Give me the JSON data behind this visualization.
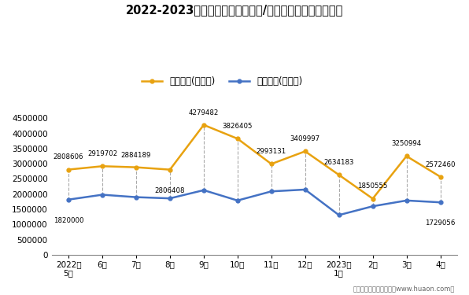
{
  "title": "2022-2023年深圳市（境内目的地/货源地）进、出口额统计",
  "x_labels": [
    "2022年\n5月",
    "6月",
    "7月",
    "8月",
    "9月",
    "10月",
    "11月",
    "12月",
    "2023年\n1月",
    "2月",
    "3月",
    "4月"
  ],
  "export_values": [
    2808606,
    2919702,
    2884189,
    2806408,
    4279482,
    3826405,
    2993131,
    3409997,
    2634183,
    1850555,
    3250994,
    2572460
  ],
  "import_values": [
    1820000,
    1980000,
    1900000,
    1860000,
    2130000,
    1790000,
    2090000,
    2150000,
    1310000,
    1600000,
    1790000,
    1729056
  ],
  "export_label": "出口总额(万美元)",
  "import_label": "进口总额(万美元)",
  "export_color": "#E8A210",
  "import_color": "#4472C4",
  "ylim": [
    0,
    4800000
  ],
  "yticks": [
    0,
    500000,
    1000000,
    1500000,
    2000000,
    2500000,
    3000000,
    3500000,
    4000000,
    4500000
  ],
  "background_color": "#FFFFFF",
  "footer": "制图：华经产业研究院（www.huaon.com）",
  "export_label_va_offsets": [
    8,
    8,
    8,
    -16,
    8,
    8,
    8,
    8,
    8,
    8,
    8,
    8
  ],
  "import_label_show": [
    true,
    false,
    false,
    false,
    false,
    false,
    false,
    false,
    false,
    false,
    false,
    true
  ],
  "import_label_va_offsets": [
    -16,
    8,
    8,
    8,
    8,
    8,
    8,
    8,
    8,
    8,
    8,
    -16
  ]
}
